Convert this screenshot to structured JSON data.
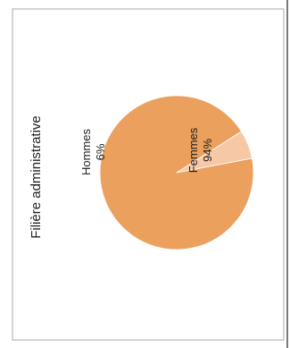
{
  "chart_data": {
    "type": "pie",
    "title": "Filière administrative",
    "slices": [
      {
        "name": "Femmes",
        "value": 94,
        "label": "94%",
        "color": "#eba05e"
      },
      {
        "name": "Hommes",
        "value": 6,
        "label": "6%",
        "color": "#f6c8a6"
      }
    ],
    "orientation": "rotated-90-ccw",
    "legend": "none"
  }
}
